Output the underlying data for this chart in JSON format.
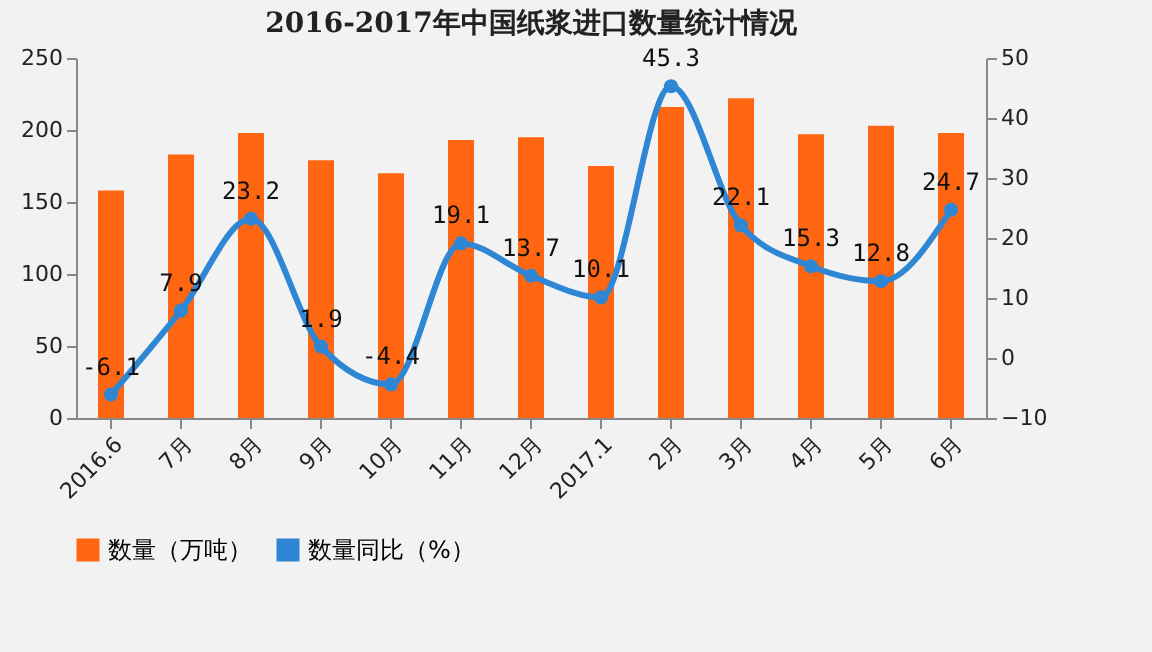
{
  "chart_data": {
    "type": "bar",
    "title": "2016-2017年中国纸浆进口数量统计情况",
    "categories": [
      "2016.6",
      "7月",
      "8月",
      "9月",
      "10月",
      "11月",
      "12月",
      "2017.1",
      "2月",
      "3月",
      "4月",
      "5月",
      "6月"
    ],
    "series": [
      {
        "name": "数量（万吨）",
        "color": "#ff6611",
        "values": [
          158,
          183,
          198,
          179,
          170,
          193,
          195,
          175,
          216,
          222,
          197,
          203,
          198
        ]
      },
      {
        "name": "数量同比（%）",
        "type": "line",
        "axis": "y2",
        "color": "#2e86d4",
        "marker": "circle",
        "values": [
          -6.1,
          7.9,
          23.2,
          1.9,
          -4.4,
          19.1,
          13.7,
          10.1,
          45.3,
          22.1,
          15.3,
          12.8,
          24.7
        ],
        "value_labels": [
          "-6.1",
          "7.9",
          "23.2",
          "1.9",
          "-4.4",
          "19.1",
          "13.7",
          "10.1",
          "45.3",
          "22.1",
          "15.3",
          "12.8",
          "24.7"
        ]
      }
    ],
    "ylim": [
      0,
      250
    ],
    "yticks": [
      0,
      50,
      100,
      150,
      200,
      250
    ],
    "y2lim": [
      -10,
      50
    ],
    "y2ticks": [
      -10,
      0,
      10,
      20,
      30,
      40,
      50
    ],
    "grid": false,
    "legend": "bottom"
  }
}
